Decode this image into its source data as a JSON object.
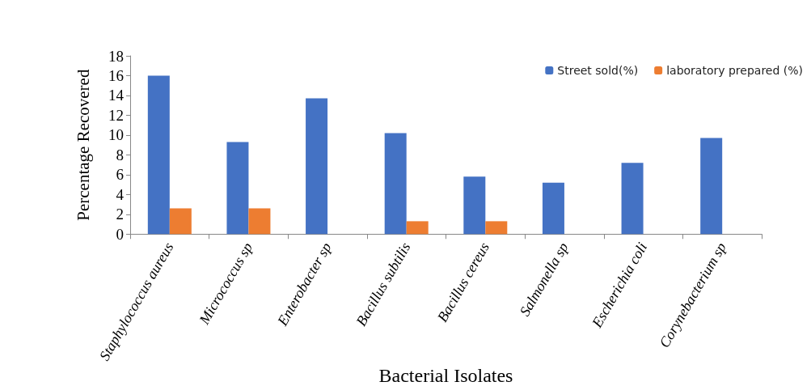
{
  "chart_data": {
    "type": "bar",
    "xlabel": "Bacterial Isolates",
    "ylabel": "Percentage Recovered",
    "categories": [
      "Staphylococcus aureus",
      "Micrococcus sp",
      "Enterobacter sp",
      "Bacillus subtilis",
      "Bacillus cereus",
      "Salmonella sp",
      "Escherichia coli",
      "Corynebacterium sp"
    ],
    "series": [
      {
        "name": "Street sold(%)",
        "color": "#4472c4",
        "values": [
          16,
          9.3,
          13.7,
          10.2,
          5.8,
          5.2,
          7.2,
          9.7
        ]
      },
      {
        "name": "laboratory prepared (%)",
        "color": "#ed7d31",
        "values": [
          2.6,
          2.6,
          0,
          1.3,
          1.3,
          0,
          0,
          0
        ]
      }
    ],
    "ylim": [
      0,
      18
    ],
    "yticks": [
      0,
      2,
      4,
      6,
      8,
      10,
      12,
      14,
      16,
      18
    ],
    "grid": false,
    "legend": "top right"
  }
}
